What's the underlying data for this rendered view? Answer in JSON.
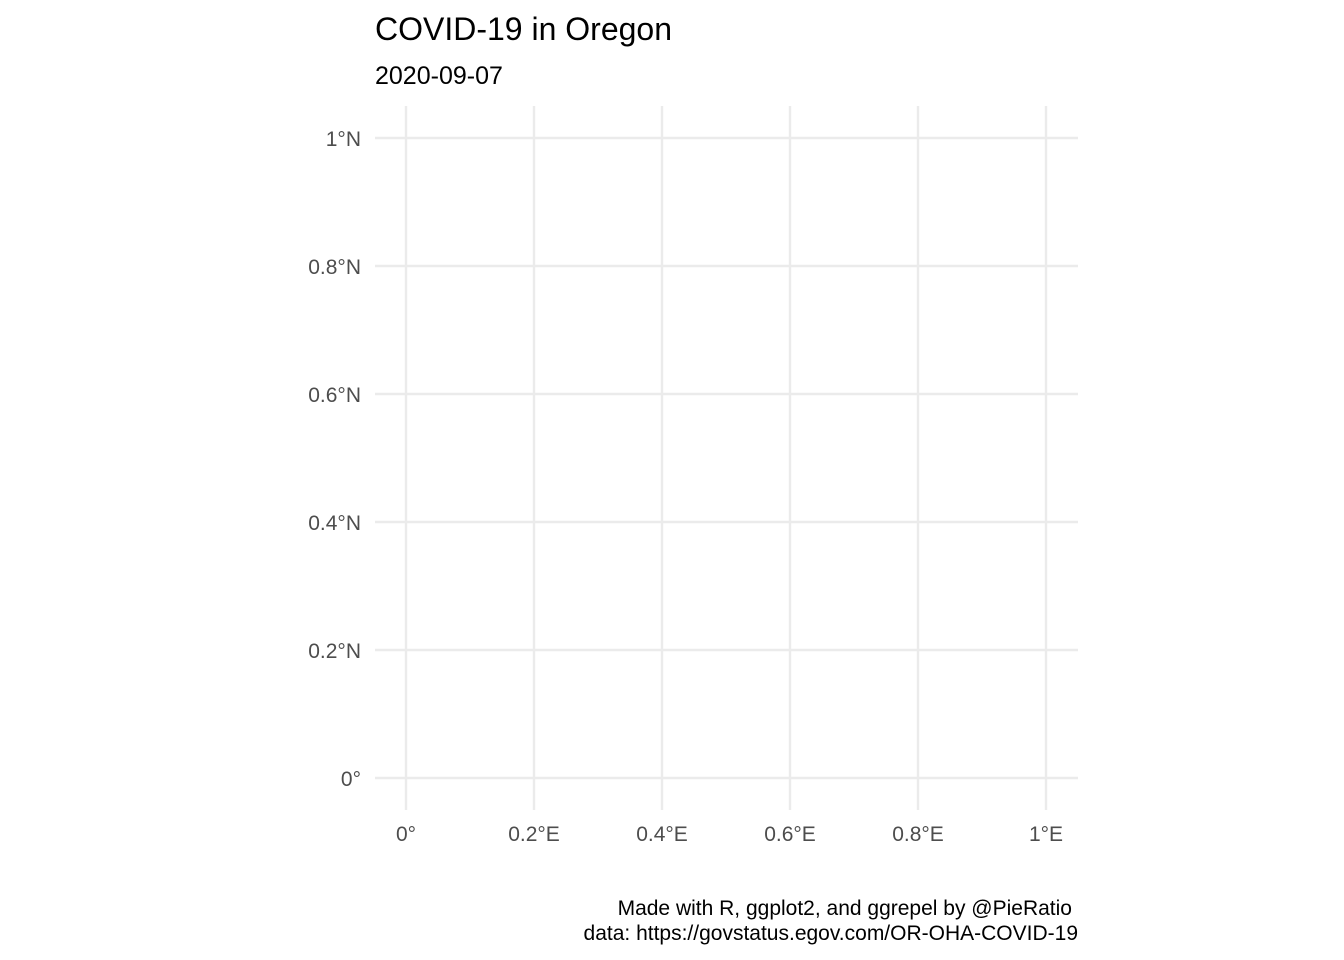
{
  "chart_data": {
    "type": "map",
    "title": "COVID-19 in Oregon",
    "subtitle": "2020-09-07",
    "x_ticks": [
      {
        "value": 0,
        "label": "0°"
      },
      {
        "value": 0.2,
        "label": "0.2°E"
      },
      {
        "value": 0.4,
        "label": "0.4°E"
      },
      {
        "value": 0.6,
        "label": "0.6°E"
      },
      {
        "value": 0.8,
        "label": "0.8°E"
      },
      {
        "value": 1,
        "label": "1°E"
      }
    ],
    "y_ticks": [
      {
        "value": 0,
        "label": "0°"
      },
      {
        "value": 0.2,
        "label": "0.2°N"
      },
      {
        "value": 0.4,
        "label": "0.4°N"
      },
      {
        "value": 0.6,
        "label": "0.6°N"
      },
      {
        "value": 0.8,
        "label": "0.8°N"
      },
      {
        "value": 1,
        "label": "1°N"
      }
    ],
    "xlim": [
      0,
      1
    ],
    "ylim": [
      0,
      1
    ],
    "grid": true,
    "series": [],
    "caption_lines": [
      "Made with R, ggplot2, and ggrepel by @PieRatio ",
      "data: https://govstatus.egov.com/OR-OHA-COVID-19"
    ]
  }
}
